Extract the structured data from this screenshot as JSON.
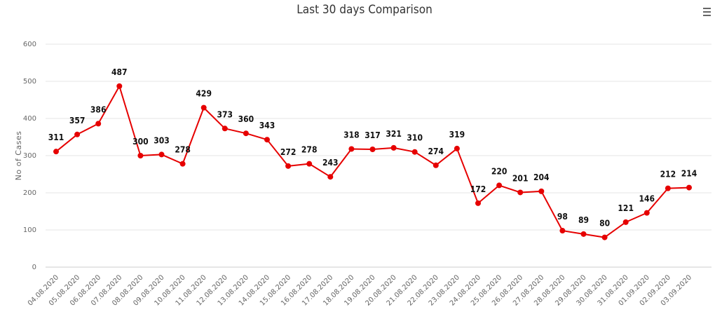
{
  "chart_data": {
    "type": "line",
    "title": "Last 30 days Comparison",
    "xlabel": "",
    "ylabel": "No of Cases",
    "ylim": [
      0,
      600
    ],
    "yticks": [
      0,
      100,
      200,
      300,
      400,
      500,
      600
    ],
    "grid": true,
    "legend": "none",
    "categories": [
      "04.08.2020",
      "05.08.2020",
      "06.08.2020",
      "07.08.2020",
      "08.08.2020",
      "09.08.2020",
      "10.08.2020",
      "11.08.2020",
      "12.08.2020",
      "13.08.2020",
      "14.08.2020",
      "15.08.2020",
      "16.08.2020",
      "17.08.2020",
      "18.08.2020",
      "19.08.2020",
      "20.08.2020",
      "21.08.2020",
      "22.08.2020",
      "23.08.2020",
      "24.08.2020",
      "25.08.2020",
      "26.08.2020",
      "27.08.2020",
      "28.08.2020",
      "29.08.2020",
      "30.08.2020",
      "31.08.2020",
      "01.09.2020",
      "02.09.2020",
      "03.09.2020"
    ],
    "series": [
      {
        "color": "#e60000",
        "values": [
          311,
          357,
          386,
          487,
          300,
          303,
          278,
          429,
          373,
          360,
          343,
          272,
          278,
          243,
          318,
          317,
          321,
          310,
          274,
          319,
          172,
          220,
          201,
          204,
          98,
          89,
          80,
          121,
          146,
          212,
          214
        ]
      }
    ]
  },
  "toolbar": {
    "menu_icon": "hamburger-menu-icon"
  }
}
